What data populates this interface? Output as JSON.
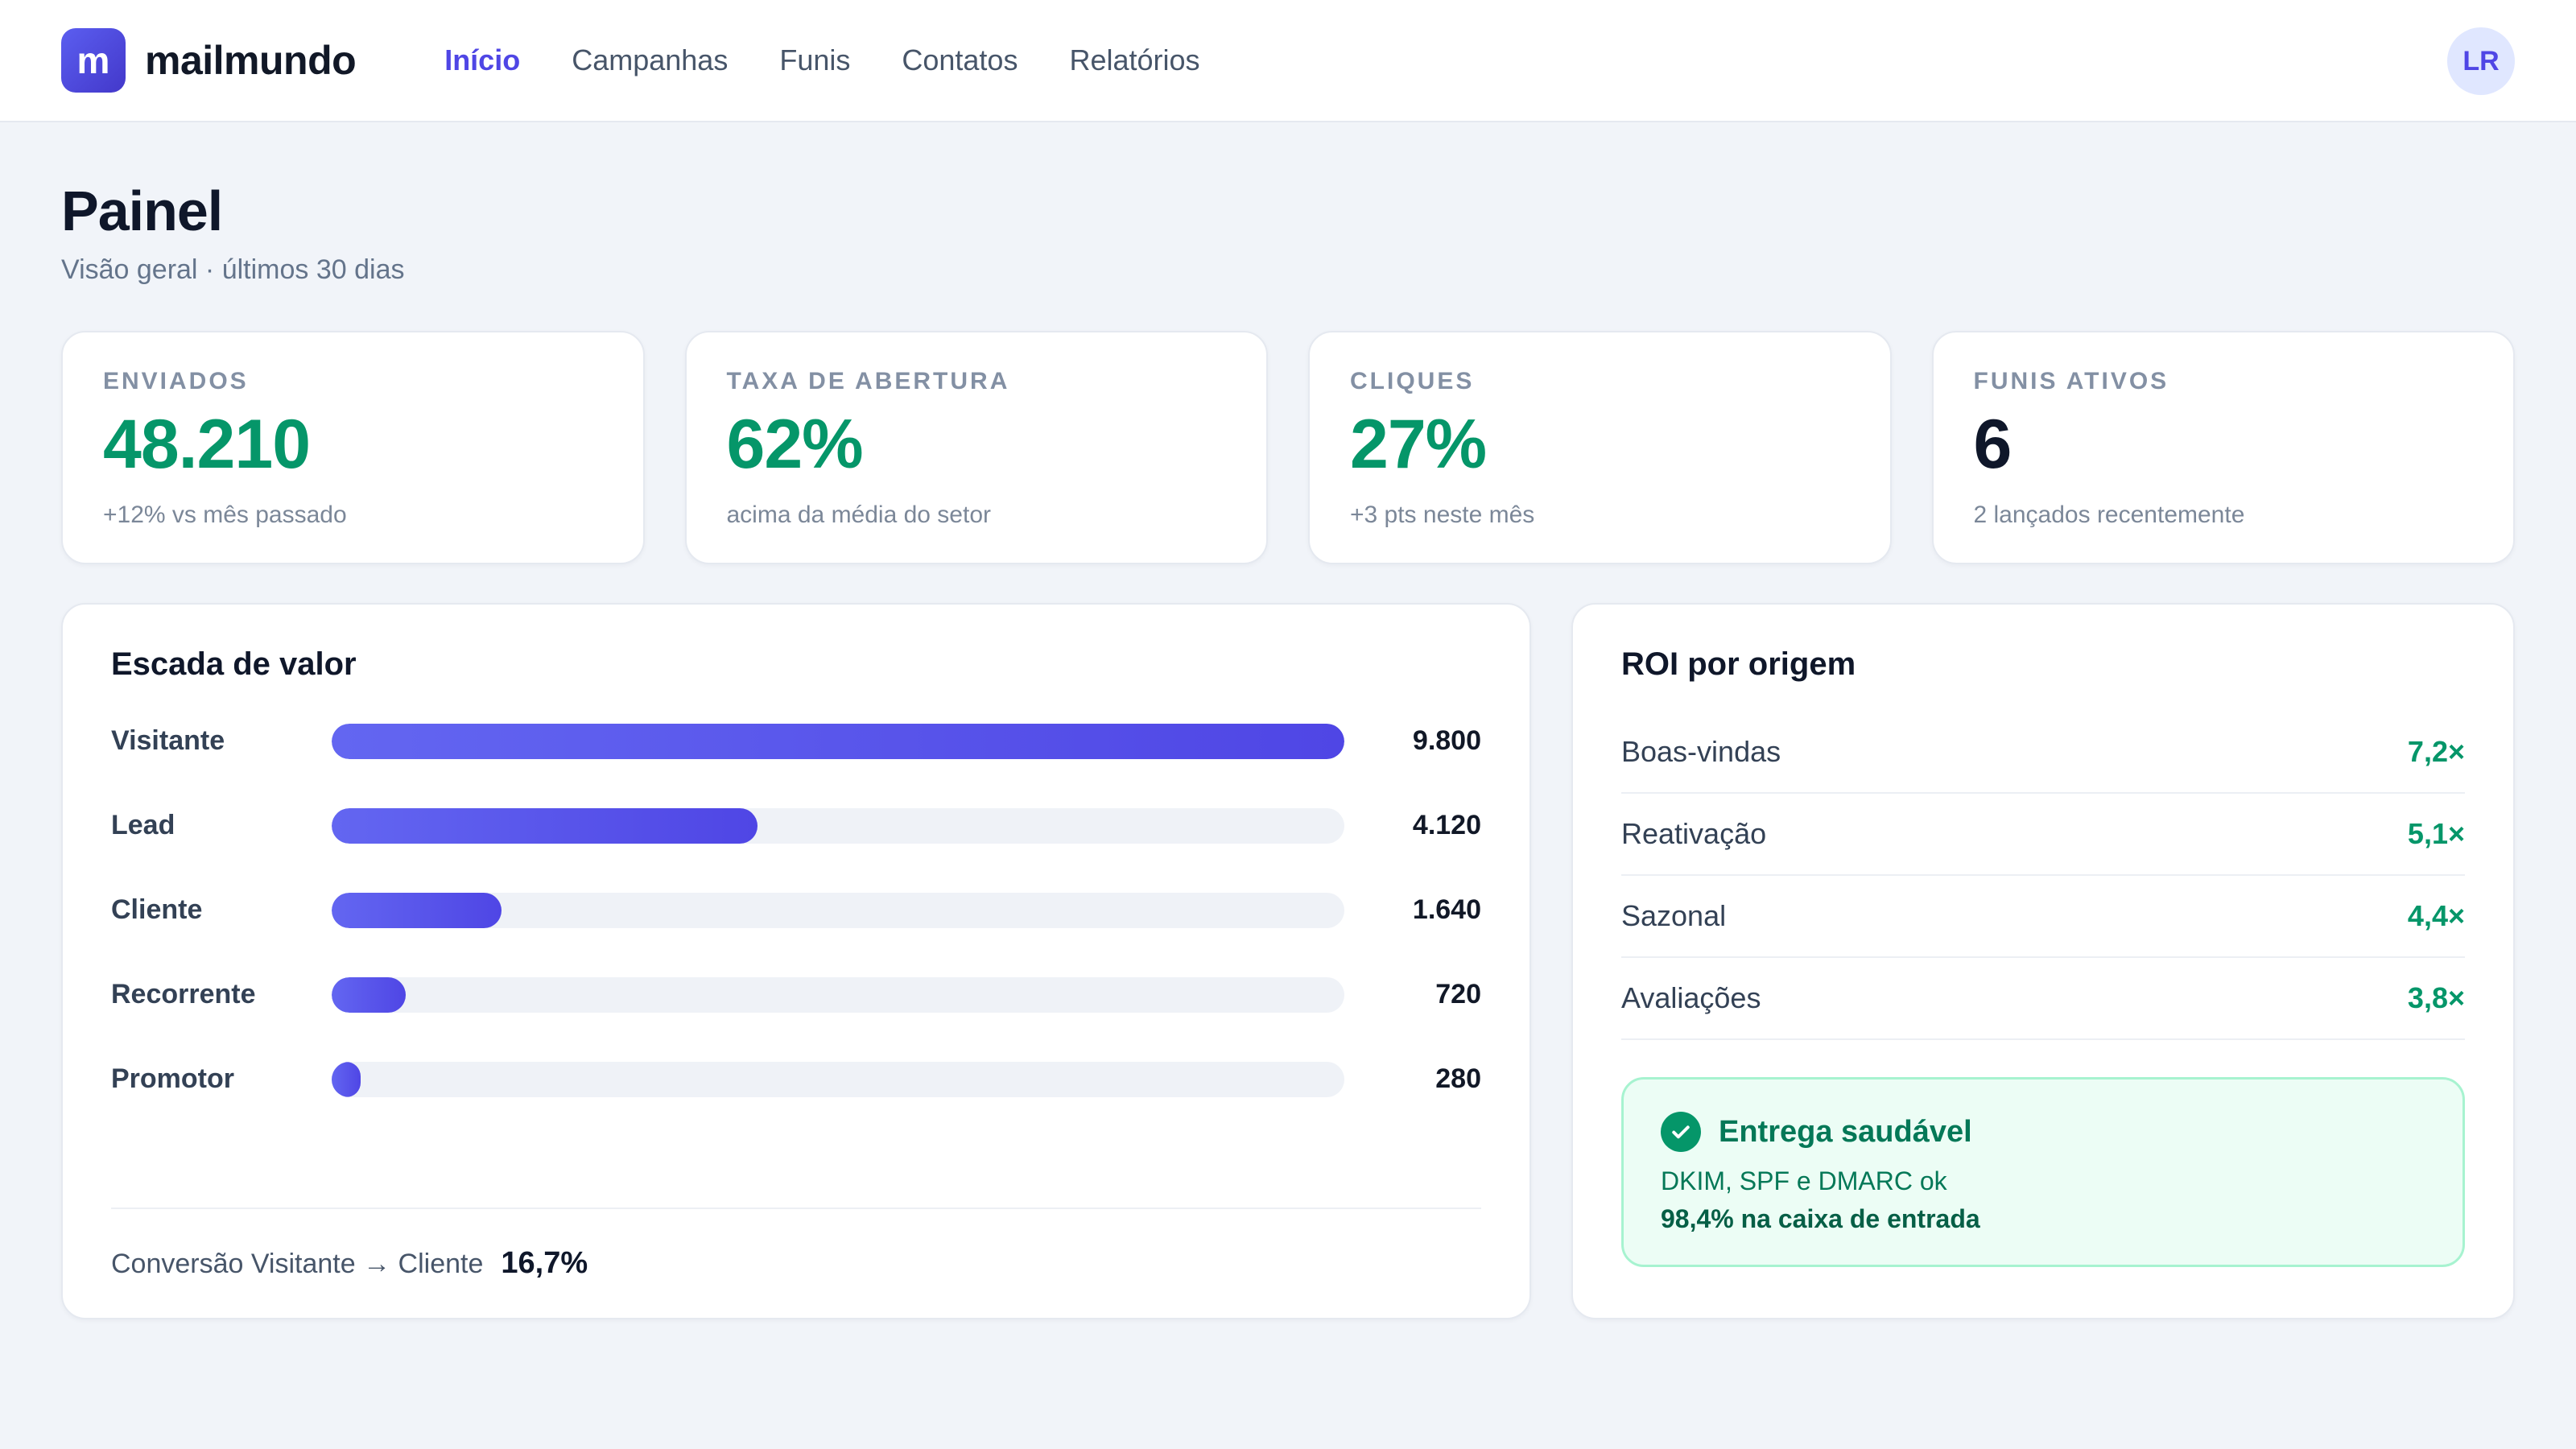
{
  "app": {
    "logo_letter": "m",
    "name": "mailmundo"
  },
  "nav": {
    "items": [
      {
        "label": "Início",
        "active": true
      },
      {
        "label": "Campanhas",
        "active": false
      },
      {
        "label": "Funis",
        "active": false
      },
      {
        "label": "Contatos",
        "active": false
      },
      {
        "label": "Relatórios",
        "active": false
      }
    ]
  },
  "user": {
    "initials": "LR"
  },
  "page": {
    "title": "Painel",
    "subtitle": "Visão geral · últimos 30 dias"
  },
  "stats": [
    {
      "label": "ENVIADOS",
      "value": "48.210",
      "note": "+12% vs mês passado",
      "color": "#059669"
    },
    {
      "label": "TAXA DE ABERTURA",
      "value": "62%",
      "note": "acima da média do setor",
      "color": "#059669"
    },
    {
      "label": "CLIQUES",
      "value": "27%",
      "note": "+3 pts neste mês",
      "color": "#059669"
    },
    {
      "label": "FUNIS ATIVOS",
      "value": "6",
      "note": "2 lançados recentemente",
      "color": "#0f172a"
    }
  ],
  "ladder": {
    "title": "Escada de valor",
    "max": 9800,
    "rows": [
      {
        "label": "Visitante",
        "value": 9800,
        "display": "9.800"
      },
      {
        "label": "Lead",
        "value": 4120,
        "display": "4.120"
      },
      {
        "label": "Cliente",
        "value": 1640,
        "display": "1.640"
      },
      {
        "label": "Recorrente",
        "value": 720,
        "display": "720"
      },
      {
        "label": "Promotor",
        "value": 280,
        "display": "280"
      }
    ],
    "conversion_label": "Conversão Visitante → Cliente",
    "conversion_value": "16,7%"
  },
  "roi": {
    "title": "ROI por origem",
    "rows": [
      {
        "name": "Boas-vindas",
        "value": "7,2×"
      },
      {
        "name": "Reativação",
        "value": "5,1×"
      },
      {
        "name": "Sazonal",
        "value": "4,4×"
      },
      {
        "name": "Avaliações",
        "value": "3,8×"
      }
    ]
  },
  "health": {
    "title": "Entrega saudável",
    "line1": "DKIM, SPF e DMARC ok",
    "line2": "98,4% na caixa de entrada",
    "icon": "check-circle-icon"
  },
  "colors": {
    "accent": "#4f46e5",
    "positive": "#059669",
    "background": "#f1f4f9"
  }
}
